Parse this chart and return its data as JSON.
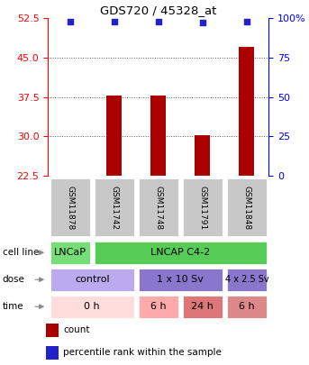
{
  "title": "GDS720 / 45328_at",
  "samples": [
    "GSM11878",
    "GSM11742",
    "GSM11748",
    "GSM11791",
    "GSM11848"
  ],
  "counts": [
    22.6,
    37.8,
    37.8,
    30.2,
    47.0
  ],
  "percentiles": [
    98,
    98,
    98,
    97,
    98
  ],
  "ylim_left": [
    22.5,
    52.5
  ],
  "ylim_right": [
    0,
    100
  ],
  "yticks_left": [
    22.5,
    30,
    37.5,
    45,
    52.5
  ],
  "yticks_right": [
    0,
    25,
    50,
    75,
    100
  ],
  "bar_color": "#aa0000",
  "dot_color": "#2222cc",
  "cell_line_row": [
    {
      "label": "LNCaP",
      "span": [
        0,
        1
      ],
      "color": "#77dd77"
    },
    {
      "label": "LNCAP C4-2",
      "span": [
        1,
        5
      ],
      "color": "#55cc55"
    }
  ],
  "dose_row": [
    {
      "label": "control",
      "span": [
        0,
        2
      ],
      "color": "#bbaaee"
    },
    {
      "label": "1 x 10 Sv",
      "span": [
        2,
        4
      ],
      "color": "#8877cc"
    },
    {
      "label": "4 x 2.5 Sv",
      "span": [
        4,
        5
      ],
      "color": "#8877cc"
    }
  ],
  "time_row": [
    {
      "label": "0 h",
      "span": [
        0,
        2
      ],
      "color": "#ffdddd"
    },
    {
      "label": "6 h",
      "span": [
        2,
        3
      ],
      "color": "#ffaaaa"
    },
    {
      "label": "24 h",
      "span": [
        3,
        4
      ],
      "color": "#dd7777"
    },
    {
      "label": "6 h",
      "span": [
        4,
        5
      ],
      "color": "#dd8888"
    }
  ],
  "row_labels": [
    "cell line",
    "dose",
    "time"
  ],
  "legend_items": [
    {
      "color": "#aa0000",
      "label": "count"
    },
    {
      "color": "#2222cc",
      "label": "percentile rank within the sample"
    }
  ]
}
